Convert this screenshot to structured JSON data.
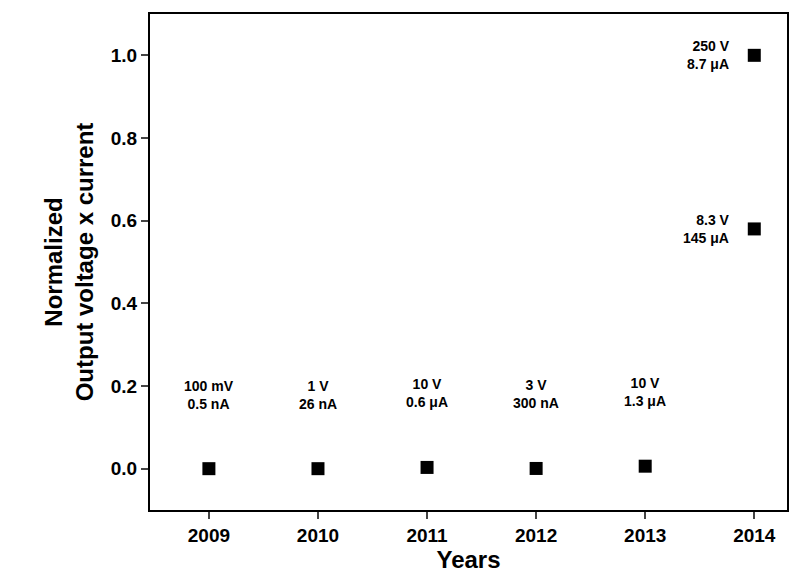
{
  "chart_data": {
    "type": "scatter",
    "xlabel": "Years",
    "ylabel": [
      "Normalized",
      "Output voltage x current"
    ],
    "x": [
      2009,
      2010,
      2011,
      2012,
      2013,
      2014,
      2014
    ],
    "values": [
      0.0,
      0.0,
      0.003,
      0.0005,
      0.006,
      0.58,
      1.0
    ],
    "color": "#000000",
    "marker": "square",
    "xlim": [
      2008.46,
      2014.3
    ],
    "xticks": [
      2009,
      2010,
      2011,
      2012,
      2013,
      2014
    ],
    "ylim": [
      -0.1,
      1.1
    ],
    "yticks": [
      {
        "value": 0,
        "label": "0.0"
      },
      0.2,
      0.4,
      0.6,
      0.8,
      {
        "value": 1,
        "label": "1.0"
      }
    ],
    "grid": false,
    "annotations": [
      {
        "x": 2009,
        "y": 0.0,
        "lines": [
          "100 mV",
          "0.5 nA"
        ]
      },
      {
        "x": 2010,
        "y": 0.0,
        "lines": [
          "1 V",
          "26 nA"
        ]
      },
      {
        "x": 2011,
        "y": 0.003,
        "lines": [
          "10 V",
          "0.6 μA"
        ]
      },
      {
        "x": 2012,
        "y": 0.0005,
        "lines": [
          "3 V",
          "300 nA"
        ]
      },
      {
        "x": 2013,
        "y": 0.006,
        "lines": [
          "10 V",
          "1.3 μA"
        ]
      },
      {
        "x": 2014,
        "y": 0.58,
        "lines": [
          "8.3 V",
          "145 μA"
        ]
      },
      {
        "x": 2014,
        "y": 1.0,
        "lines": [
          "250 V",
          "8.7 μA"
        ]
      }
    ]
  }
}
